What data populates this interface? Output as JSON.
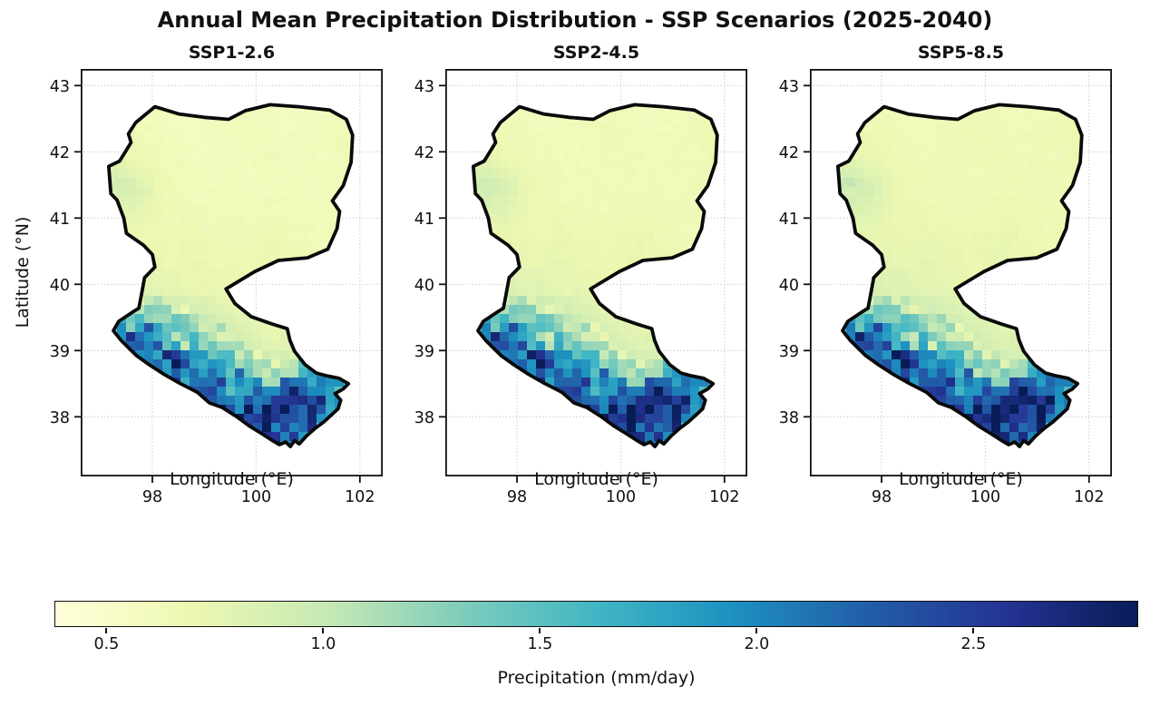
{
  "figure": {
    "title": "Annual Mean Precipitation Distribution - SSP Scenarios (2025-2040)"
  },
  "chart_data": {
    "type": "heatmap",
    "title": "Annual Mean Precipitation Distribution - SSP Scenarios (2025-2040)",
    "panels": [
      {
        "name": "SSP1-2.6",
        "scale": 1.0
      },
      {
        "name": "SSP2-4.5",
        "scale": 1.04
      },
      {
        "name": "SSP5-8.5",
        "scale": 1.07
      }
    ],
    "xlabel": "Longitude (°E)",
    "ylabel": "Latitude (°N)",
    "xlim": [
      96.62,
      102.44
    ],
    "ylim": [
      37.1,
      43.25
    ],
    "xticks": [
      98,
      100,
      102
    ],
    "yticks": [
      43,
      42,
      41,
      40,
      39,
      38
    ],
    "grid_on": true,
    "gridline_color": "#c9c9c9",
    "grid_lon": [
      96.8,
      97.3,
      97.8,
      98.3,
      98.8,
      99.3,
      99.8,
      100.3,
      100.8,
      101.3,
      101.8,
      102.3
    ],
    "grid_lat": [
      43.1,
      42.7,
      42.3,
      41.9,
      41.5,
      41.1,
      40.7,
      40.3,
      39.9,
      39.5,
      39.1,
      38.7,
      38.3,
      37.9,
      37.5
    ],
    "values": [
      [
        0.58,
        0.58,
        0.57,
        0.57,
        0.58,
        0.58,
        0.57,
        0.57,
        0.58,
        0.58,
        0.57,
        0.57
      ],
      [
        0.6,
        0.62,
        0.6,
        0.58,
        0.57,
        0.6,
        0.62,
        0.6,
        0.58,
        0.6,
        0.6,
        0.58
      ],
      [
        0.62,
        0.64,
        0.62,
        0.6,
        0.58,
        0.6,
        0.62,
        0.6,
        0.6,
        0.62,
        0.64,
        0.6
      ],
      [
        0.66,
        0.72,
        0.68,
        0.62,
        0.6,
        0.6,
        0.6,
        0.62,
        0.6,
        0.6,
        0.64,
        0.6
      ],
      [
        0.72,
        0.95,
        0.82,
        0.66,
        0.62,
        0.6,
        0.6,
        0.6,
        0.62,
        0.6,
        0.62,
        0.6
      ],
      [
        0.68,
        0.8,
        0.74,
        0.66,
        0.63,
        0.62,
        0.62,
        0.63,
        0.62,
        0.6,
        0.6,
        0.6
      ],
      [
        0.66,
        0.72,
        0.7,
        0.68,
        0.68,
        0.66,
        0.65,
        0.68,
        0.64,
        0.62,
        0.6,
        0.6
      ],
      [
        0.7,
        0.73,
        0.72,
        0.7,
        0.72,
        0.68,
        0.66,
        0.7,
        0.66,
        0.62,
        0.6,
        0.6
      ],
      [
        0.82,
        0.88,
        0.82,
        0.76,
        0.74,
        0.72,
        0.7,
        0.72,
        0.66,
        0.63,
        0.6,
        0.6
      ],
      [
        1.1,
        1.5,
        1.4,
        1.2,
        1.0,
        0.85,
        0.76,
        0.72,
        0.72,
        0.85,
        1.0,
        0.9
      ],
      [
        1.2,
        1.9,
        2.4,
        1.9,
        1.5,
        1.2,
        0.9,
        0.76,
        0.82,
        1.25,
        1.4,
        1.1
      ],
      [
        1.0,
        1.6,
        2.1,
        2.6,
        2.2,
        1.8,
        1.4,
        1.0,
        1.25,
        1.75,
        1.6,
        1.3
      ],
      [
        0.8,
        1.2,
        1.7,
        2.2,
        2.5,
        2.3,
        2.0,
        2.4,
        2.7,
        2.2,
        1.7,
        1.4
      ],
      [
        0.7,
        0.9,
        1.3,
        1.6,
        1.9,
        2.2,
        2.5,
        2.6,
        2.3,
        1.9,
        1.5,
        1.2
      ],
      [
        0.6,
        0.8,
        1.0,
        1.3,
        1.5,
        1.8,
        2.1,
        2.2,
        1.9,
        1.6,
        1.3,
        1.1
      ]
    ],
    "boundary": [
      [
        98.05,
        42.68
      ],
      [
        98.51,
        42.57
      ],
      [
        99.0,
        42.52
      ],
      [
        99.47,
        42.49
      ],
      [
        99.79,
        42.62
      ],
      [
        100.27,
        42.71
      ],
      [
        100.82,
        42.68
      ],
      [
        101.42,
        42.63
      ],
      [
        101.74,
        42.49
      ],
      [
        101.86,
        42.25
      ],
      [
        101.83,
        41.84
      ],
      [
        101.68,
        41.49
      ],
      [
        101.47,
        41.26
      ],
      [
        101.61,
        41.1
      ],
      [
        101.56,
        40.84
      ],
      [
        101.38,
        40.53
      ],
      [
        100.99,
        40.4
      ],
      [
        100.43,
        40.36
      ],
      [
        99.97,
        40.19
      ],
      [
        99.42,
        39.93
      ],
      [
        99.59,
        39.71
      ],
      [
        99.91,
        39.51
      ],
      [
        100.31,
        39.4
      ],
      [
        100.6,
        39.33
      ],
      [
        100.65,
        39.16
      ],
      [
        100.74,
        38.99
      ],
      [
        100.94,
        38.79
      ],
      [
        101.16,
        38.66
      ],
      [
        101.35,
        38.62
      ],
      [
        101.6,
        38.58
      ],
      [
        101.78,
        38.5
      ],
      [
        101.68,
        38.42
      ],
      [
        101.52,
        38.35
      ],
      [
        101.63,
        38.25
      ],
      [
        101.58,
        38.12
      ],
      [
        101.44,
        38.02
      ],
      [
        101.3,
        37.92
      ],
      [
        101.13,
        37.82
      ],
      [
        100.97,
        37.71
      ],
      [
        100.83,
        37.59
      ],
      [
        100.74,
        37.64
      ],
      [
        100.66,
        37.55
      ],
      [
        100.57,
        37.62
      ],
      [
        100.45,
        37.58
      ],
      [
        100.32,
        37.64
      ],
      [
        100.1,
        37.75
      ],
      [
        99.87,
        37.86
      ],
      [
        99.63,
        38.0
      ],
      [
        99.35,
        38.14
      ],
      [
        99.1,
        38.21
      ],
      [
        98.87,
        38.37
      ],
      [
        98.52,
        38.51
      ],
      [
        98.23,
        38.64
      ],
      [
        97.95,
        38.78
      ],
      [
        97.7,
        38.92
      ],
      [
        97.53,
        39.05
      ],
      [
        97.39,
        39.16
      ],
      [
        97.25,
        39.3
      ],
      [
        97.35,
        39.44
      ],
      [
        97.62,
        39.58
      ],
      [
        97.74,
        39.64
      ],
      [
        97.79,
        39.84
      ],
      [
        97.85,
        40.1
      ],
      [
        98.05,
        40.26
      ],
      [
        98.0,
        40.45
      ],
      [
        97.83,
        40.59
      ],
      [
        97.5,
        40.77
      ],
      [
        97.45,
        41.0
      ],
      [
        97.32,
        41.27
      ],
      [
        97.2,
        41.37
      ],
      [
        97.16,
        41.78
      ],
      [
        97.37,
        41.86
      ],
      [
        97.59,
        42.14
      ],
      [
        97.54,
        42.27
      ],
      [
        97.68,
        42.44
      ]
    ],
    "colorbar": {
      "label": "Precipitation (mm/day)",
      "ticks": [
        0.5,
        1.0,
        1.5,
        2.0,
        2.5
      ],
      "vmin": 0.38,
      "vmax": 2.88,
      "colormap": "YlGnBu",
      "colors": [
        "#ffffd9",
        "#edf8b1",
        "#c7e9b4",
        "#7fcdbb",
        "#41b6c4",
        "#1d91c0",
        "#225ea8",
        "#253494",
        "#081d58"
      ]
    }
  }
}
